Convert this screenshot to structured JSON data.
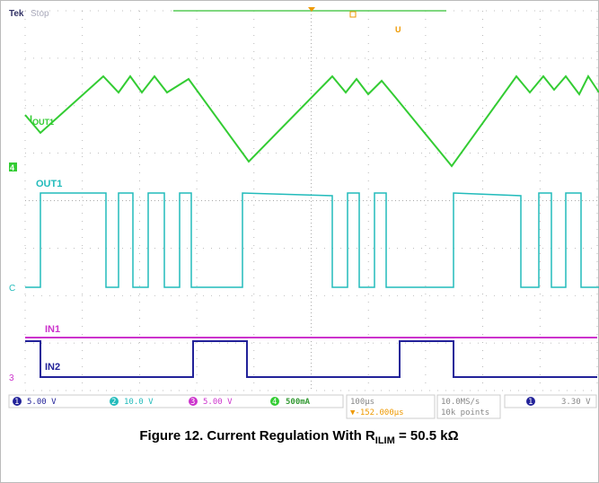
{
  "header": {
    "brand": "Tek",
    "status": "Stop",
    "trigger_mark": "U"
  },
  "traces": {
    "iout1": {
      "main": "I",
      "sub": "OUT1"
    },
    "out1": "OUT1",
    "in1": "IN1",
    "in2": "IN2"
  },
  "markers": {
    "ch4": "4",
    "ch2": "C",
    "ch3": "3"
  },
  "status_bar": {
    "ch1": {
      "num": "1",
      "scale": "5.00 V"
    },
    "ch2": {
      "num": "2",
      "scale": "10.0 V"
    },
    "ch3": {
      "num": "3",
      "scale": "5.00 V"
    },
    "ch4": {
      "num": "4",
      "scale": "500mA"
    },
    "timebase": "100µs",
    "position": "▼-152.000µs",
    "rate": "10.0MS/s",
    "points": "10k points",
    "trig_ch": "1",
    "trig_level": "3.30 V"
  },
  "caption": {
    "prefix": "Figure 12. Current Regulation With R",
    "sub": "ILIM",
    "suffix": " = 50.5 kΩ"
  }
}
